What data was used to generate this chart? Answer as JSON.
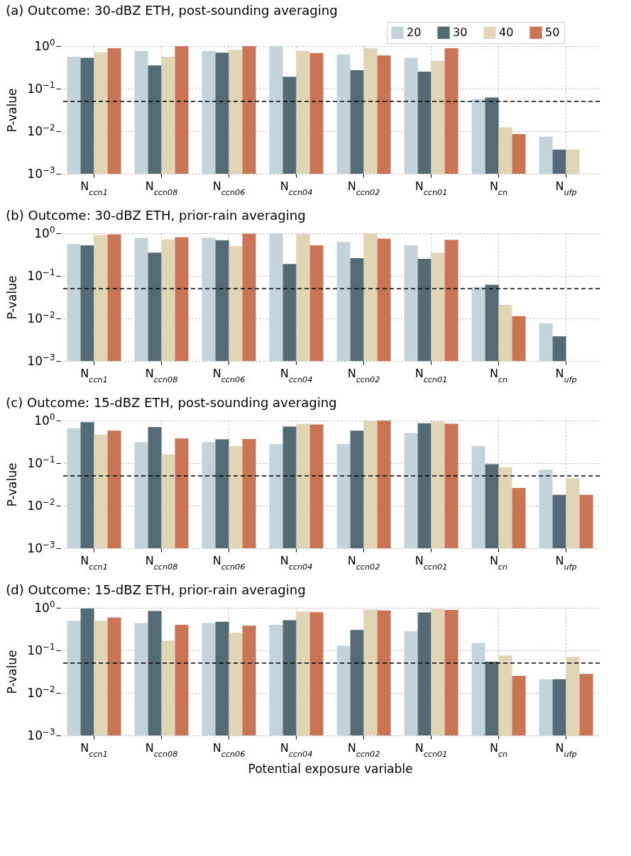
{
  "chart_data": [
    {
      "type": "bar",
      "title": "(a) Outcome: 30-dBZ ETH, post-sounding averaging",
      "ylabel": "P-value",
      "log": true,
      "grid": true,
      "legend": "top right",
      "categories": [
        "N$_{ccn1}$",
        "N$_{ccn08}$",
        "N$_{ccn06}$",
        "N$_{ccn04}$",
        "N$_{ccn02}$",
        "N$_{ccn01}$",
        "N$_{cn}$",
        "N$_{ufp}$"
      ],
      "ylim": [
        0.001,
        1
      ],
      "yticks": [
        {
          "value": 0.001,
          "label": "10$^{−3}$"
        },
        {
          "value": 0.01,
          "label": "10$^{−2}$"
        },
        {
          "value": 0.1,
          "label": "10$^{−1}$"
        },
        {
          "value": 1,
          "label": "10$^{0}$"
        }
      ],
      "ref_lines": [
        {
          "axis": "y",
          "value": 0.05,
          "color": "#000000",
          "line_style": "dashed"
        }
      ],
      "series": [
        {
          "name": "20",
          "color": "#c3d3da",
          "values": [
            0.56,
            0.77,
            0.77,
            1.0,
            0.64,
            0.53,
            0.056,
            0.0074
          ]
        },
        {
          "name": "30",
          "color": "#546a75",
          "values": [
            0.53,
            0.35,
            0.7,
            0.19,
            0.27,
            0.25,
            0.062,
            0.0037
          ]
        },
        {
          "name": "40",
          "color": "#e0d6b6",
          "values": [
            0.72,
            0.56,
            0.82,
            0.77,
            0.89,
            0.45,
            0.0124,
            0.0037
          ]
        },
        {
          "name": "50",
          "color": "#c97455",
          "values": [
            0.89,
            1.0,
            1.0,
            0.69,
            0.6,
            0.89,
            0.0086,
            null
          ]
        }
      ]
    },
    {
      "type": "bar",
      "title": "(b) Outcome: 30-dBZ ETH, prior-rain averaging",
      "ylabel": "P-value",
      "log": true,
      "grid": true,
      "categories": [
        "N$_{ccn1}$",
        "N$_{ccn08}$",
        "N$_{ccn06}$",
        "N$_{ccn04}$",
        "N$_{ccn02}$",
        "N$_{ccn01}$",
        "N$_{cn}$",
        "N$_{ufp}$"
      ],
      "ylim": [
        0.001,
        1
      ],
      "yticks": [
        {
          "value": 0.001,
          "label": "10$^{−3}$"
        },
        {
          "value": 0.01,
          "label": "10$^{−2}$"
        },
        {
          "value": 0.1,
          "label": "10$^{−1}$"
        },
        {
          "value": 1,
          "label": "10$^{0}$"
        }
      ],
      "ref_lines": [
        {
          "axis": "y",
          "value": 0.05,
          "color": "#000000",
          "line_style": "dashed"
        }
      ],
      "series": [
        {
          "name": "20",
          "color": "#c3d3da",
          "values": [
            0.56,
            0.78,
            0.78,
            1.0,
            0.63,
            0.52,
            0.055,
            0.0077
          ]
        },
        {
          "name": "30",
          "color": "#546a75",
          "values": [
            0.52,
            0.35,
            0.69,
            0.19,
            0.26,
            0.25,
            0.062,
            0.0038
          ]
        },
        {
          "name": "40",
          "color": "#e0d6b6",
          "values": [
            0.91,
            0.72,
            0.5,
            0.96,
            1.0,
            0.35,
            0.021,
            null
          ]
        },
        {
          "name": "50",
          "color": "#c97455",
          "values": [
            0.94,
            0.81,
            0.98,
            0.52,
            0.75,
            0.7,
            0.0113,
            null
          ]
        }
      ]
    },
    {
      "type": "bar",
      "title": "(c) Outcome: 15-dBZ ETH, post-sounding averaging",
      "ylabel": "P-value",
      "log": true,
      "grid": true,
      "categories": [
        "N$_{ccn1}$",
        "N$_{ccn08}$",
        "N$_{ccn06}$",
        "N$_{ccn04}$",
        "N$_{ccn02}$",
        "N$_{ccn01}$",
        "N$_{cn}$",
        "N$_{ufp}$"
      ],
      "ylim": [
        0.001,
        1
      ],
      "yticks": [
        {
          "value": 0.001,
          "label": "10$^{−3}$"
        },
        {
          "value": 0.01,
          "label": "10$^{−2}$"
        },
        {
          "value": 0.1,
          "label": "10$^{−1}$"
        },
        {
          "value": 1,
          "label": "10$^{0}$"
        }
      ],
      "ref_lines": [
        {
          "axis": "y",
          "value": 0.05,
          "color": "#000000",
          "line_style": "dashed"
        }
      ],
      "series": [
        {
          "name": "20",
          "color": "#c3d3da",
          "values": [
            0.66,
            0.31,
            0.31,
            0.28,
            0.28,
            0.51,
            0.25,
            0.07
          ]
        },
        {
          "name": "30",
          "color": "#546a75",
          "values": [
            0.92,
            0.7,
            0.36,
            0.72,
            0.58,
            0.87,
            0.094,
            0.018
          ]
        },
        {
          "name": "40",
          "color": "#e0d6b6",
          "values": [
            0.47,
            0.16,
            0.25,
            0.84,
            1.0,
            0.95,
            0.08,
            0.044
          ]
        },
        {
          "name": "50",
          "color": "#c97455",
          "values": [
            0.58,
            0.38,
            0.37,
            0.81,
            1.0,
            0.84,
            0.026,
            0.018
          ]
        }
      ]
    },
    {
      "type": "bar",
      "title": "(d) Outcome: 15-dBZ ETH, prior-rain averaging",
      "ylabel": "P-value",
      "xlabel": "Potential exposure variable",
      "log": true,
      "grid": true,
      "categories": [
        "N$_{ccn1}$",
        "N$_{ccn08}$",
        "N$_{ccn06}$",
        "N$_{ccn04}$",
        "N$_{ccn02}$",
        "N$_{ccn01}$",
        "N$_{cn}$",
        "N$_{ufp}$"
      ],
      "ylim": [
        0.001,
        1
      ],
      "yticks": [
        {
          "value": 0.001,
          "label": "10$^{−3}$"
        },
        {
          "value": 0.01,
          "label": "10$^{−2}$"
        },
        {
          "value": 0.1,
          "label": "10$^{−1}$"
        },
        {
          "value": 1,
          "label": "10$^{0}$"
        }
      ],
      "ref_lines": [
        {
          "axis": "y",
          "value": 0.05,
          "color": "#000000",
          "line_style": "dashed"
        }
      ],
      "series": [
        {
          "name": "20",
          "color": "#c3d3da",
          "values": [
            0.49,
            0.44,
            0.44,
            0.4,
            0.128,
            0.28,
            0.15,
            0.021
          ]
        },
        {
          "name": "30",
          "color": "#546a75",
          "values": [
            0.96,
            0.84,
            0.47,
            0.51,
            0.3,
            0.78,
            0.054,
            0.021
          ]
        },
        {
          "name": "40",
          "color": "#e0d6b6",
          "values": [
            0.49,
            0.17,
            0.26,
            0.82,
            0.91,
            0.94,
            0.076,
            0.07
          ]
        },
        {
          "name": "50",
          "color": "#c97455",
          "values": [
            0.59,
            0.4,
            0.38,
            0.79,
            0.87,
            0.89,
            0.025,
            0.028
          ]
        }
      ]
    }
  ]
}
